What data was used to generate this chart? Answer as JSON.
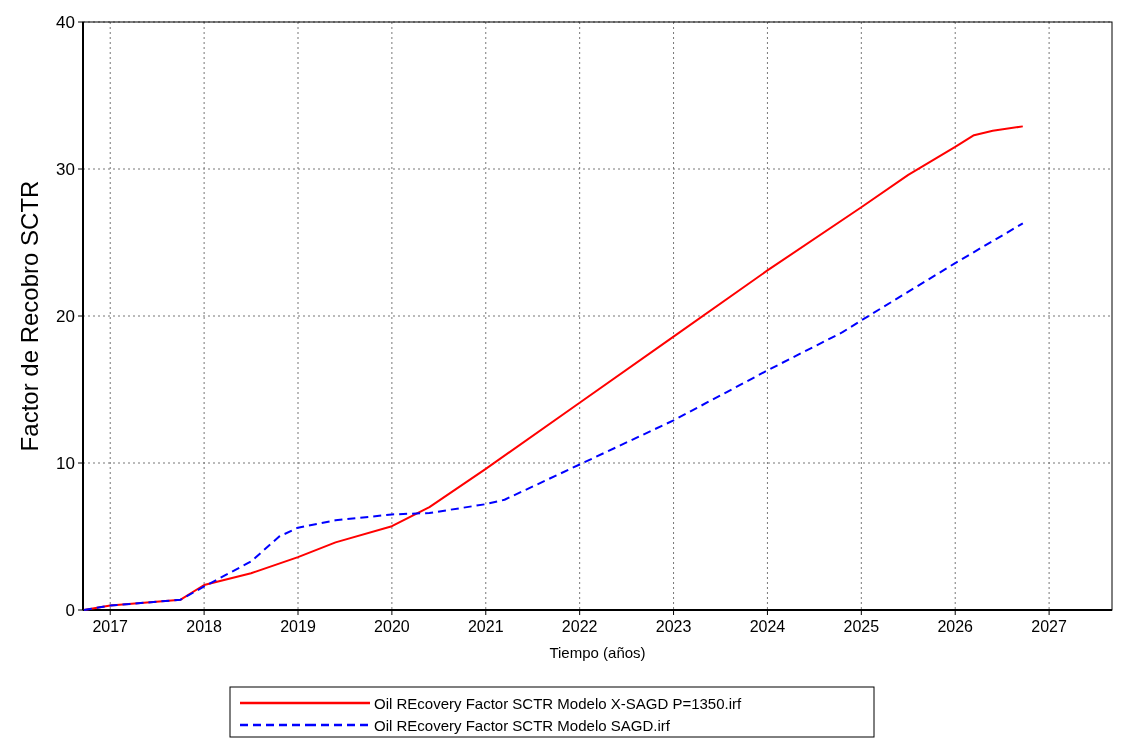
{
  "chart_data": {
    "type": "line",
    "xlabel": "Tiempo (años)",
    "ylabel": "Factor de Recobro SCTR",
    "xlim": [
      2016.71,
      2027.67
    ],
    "xticks": [
      2017,
      2018,
      2019,
      2020,
      2021,
      2022,
      2023,
      2024,
      2025,
      2026,
      2027
    ],
    "ylim": [
      0,
      40
    ],
    "yticks": [
      0,
      10,
      20,
      30,
      40
    ],
    "grid": true,
    "legend": "bottom",
    "marker": "none",
    "series": [
      {
        "name": "Oil REcovery Factor SCTR Modelo X-SAGD P=1350.irf",
        "color": "#ff0000",
        "line_style": "solid",
        "x": [
          2016.72,
          2017.0,
          2017.75,
          2018.0,
          2018.5,
          2019.0,
          2019.4,
          2020.0,
          2020.4,
          2021.0,
          2022.0,
          2023.0,
          2024.0,
          2025.0,
          2025.5,
          2026.0,
          2026.2,
          2026.4,
          2026.72
        ],
        "values": [
          0,
          0.3,
          0.7,
          1.7,
          2.5,
          3.6,
          4.6,
          5.7,
          7.0,
          9.6,
          14.1,
          18.6,
          23.1,
          27.4,
          29.6,
          31.5,
          32.3,
          32.6,
          32.9
        ]
      },
      {
        "name": "Oil REcovery Factor SCTR Modelo SAGD.irf",
        "color": "#0000ff",
        "line_style": "dashed",
        "x": [
          2016.72,
          2017.0,
          2017.75,
          2018.0,
          2018.5,
          2018.8,
          2019.0,
          2019.4,
          2020.0,
          2020.4,
          2021.0,
          2021.2,
          2022.0,
          2023.0,
          2024.0,
          2024.8,
          2025.0,
          2026.0,
          2026.72
        ],
        "values": [
          0,
          0.3,
          0.7,
          1.6,
          3.3,
          5.0,
          5.6,
          6.1,
          6.5,
          6.6,
          7.2,
          7.5,
          9.9,
          12.9,
          16.3,
          18.9,
          19.7,
          23.6,
          26.3
        ]
      }
    ]
  }
}
